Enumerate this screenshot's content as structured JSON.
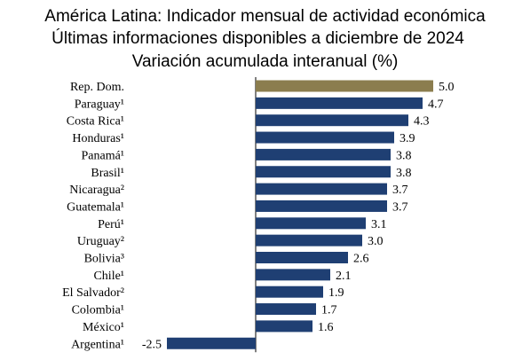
{
  "chart_data": {
    "type": "bar",
    "orientation": "horizontal",
    "title": "América Latina: Indicador mensual de actividad económica",
    "subtitle": "Últimas informaciones disponibles a diciembre de 2024",
    "subtitle2": "Variación acumulada interanual (%)",
    "categories": [
      "Rep. Dom.",
      "Paraguay¹",
      "Costa Rica¹",
      "Honduras¹",
      "Panamá¹",
      "Brasil¹",
      "Nicaragua²",
      "Guatemala¹",
      "Perú¹",
      "Uruguay²",
      "Bolivia³",
      "Chile¹",
      "El Salvador²",
      "Colombia¹",
      "México¹",
      "Argentina¹"
    ],
    "values": [
      5.0,
      4.7,
      4.3,
      3.9,
      3.8,
      3.8,
      3.7,
      3.7,
      3.1,
      3.0,
      2.6,
      2.1,
      1.9,
      1.7,
      1.6,
      -2.5
    ],
    "value_labels": [
      "5.0",
      "4.7",
      "4.3",
      "3.9",
      "3.8",
      "3.8",
      "3.7",
      "3.7",
      "3.1",
      "3.0",
      "2.6",
      "2.1",
      "1.9",
      "1.7",
      "1.6",
      "-2.5"
    ],
    "highlight_index": 0,
    "colors": {
      "highlight": "#8B7D4E",
      "bar": "#1F3F73",
      "axis": "#000000"
    },
    "grid": false,
    "legend": "none"
  }
}
